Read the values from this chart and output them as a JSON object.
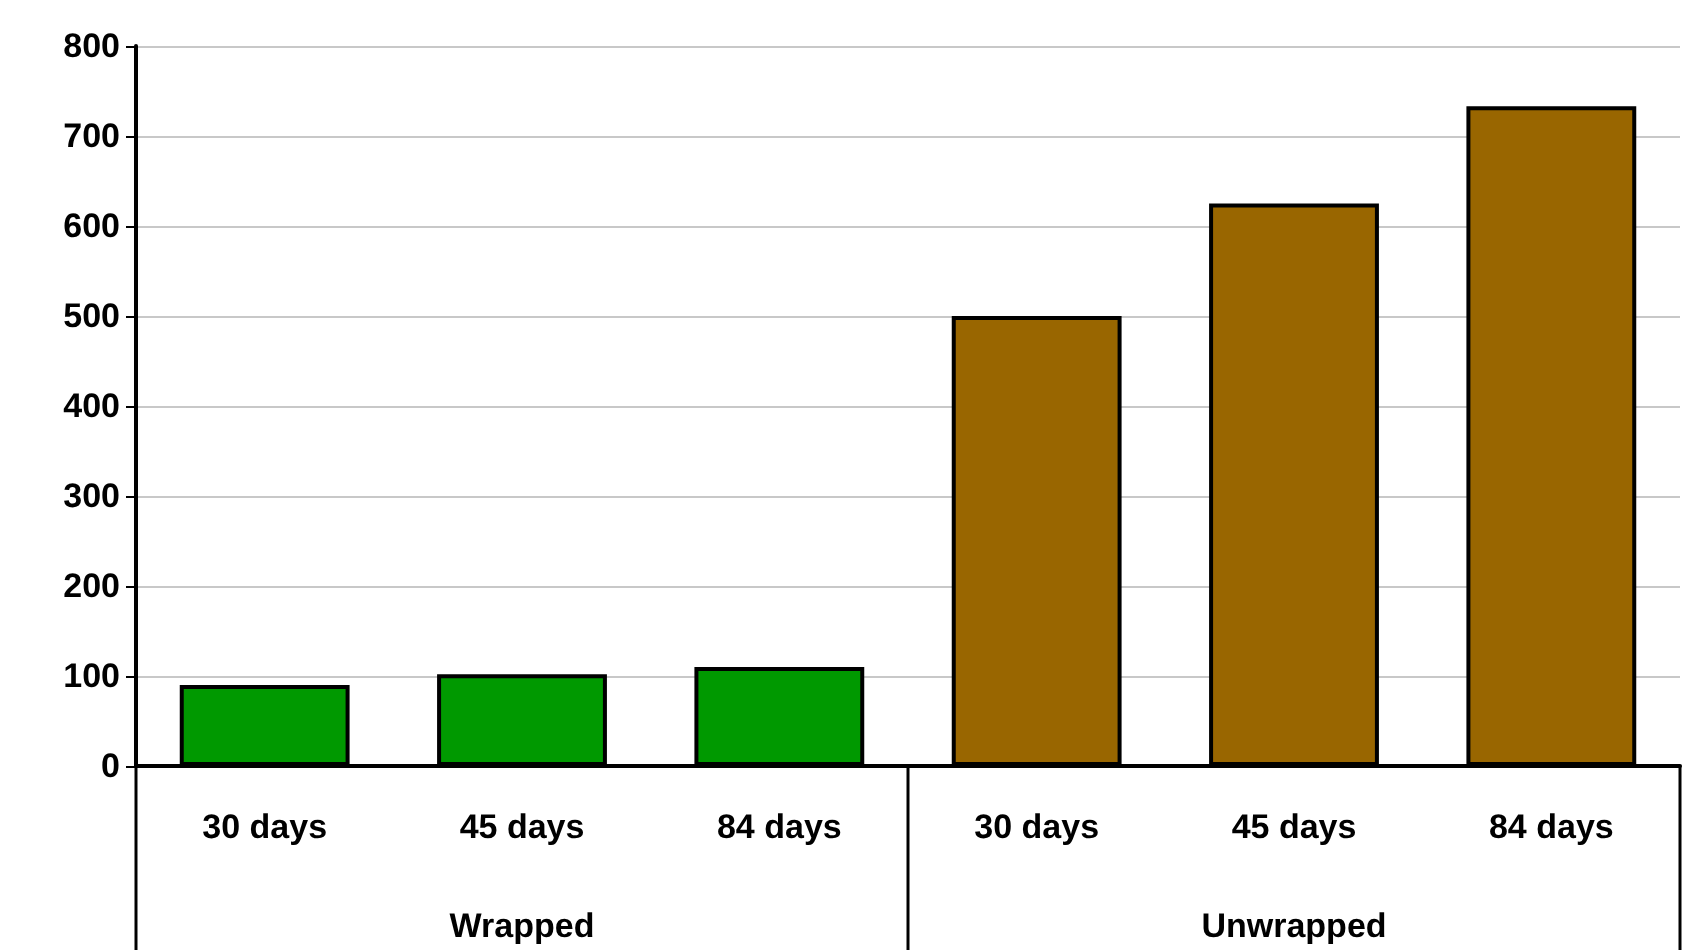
{
  "chart_data": {
    "type": "bar",
    "categories": [
      "30 days",
      "45 days",
      "84 days",
      "30 days",
      "45 days",
      "84 days"
    ],
    "stacked": true,
    "grid": "y",
    "series": [
      {
        "color": "#009900",
        "values": [
          90,
          102,
          110,
          null,
          null,
          null
        ]
      },
      {
        "color": "#996600",
        "values": [
          null,
          null,
          null,
          500,
          625,
          733
        ]
      }
    ],
    "annotations": [
      "Wrapped",
      "Unwrapped"
    ],
    "ylim": [
      0,
      800
    ],
    "yticks": [
      0,
      100,
      200,
      300,
      400,
      500,
      600,
      700,
      800
    ]
  }
}
